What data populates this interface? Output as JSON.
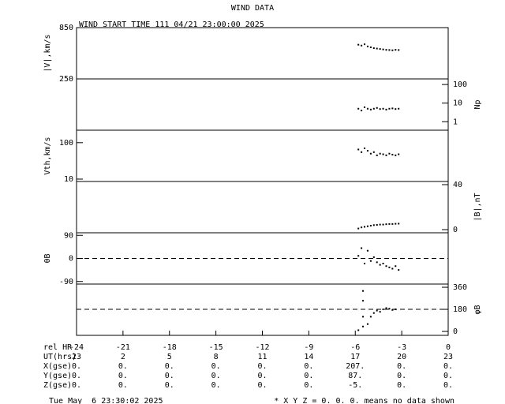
{
  "title": "WIND DATA",
  "subtitle": "WIND START TIME 111 04/21 23:00:00 2025",
  "chart_data": [
    {
      "type": "scatter",
      "ylabel": "|V|,km/s",
      "yaxis_side": "left",
      "log_y": false,
      "color": "#000000",
      "xlim": [
        -24,
        0
      ],
      "ylim": [
        250,
        850
      ],
      "yticks": [
        250,
        850
      ],
      "x": [
        -5.8,
        -5.6,
        -5.4,
        -5.2,
        -5.0,
        -4.8,
        -4.6,
        -4.4,
        -4.2,
        -4.0,
        -3.8,
        -3.6,
        -3.4,
        -3.2
      ],
      "values": [
        650,
        640,
        655,
        630,
        620,
        610,
        605,
        600,
        595,
        590,
        588,
        585,
        590,
        588
      ]
    },
    {
      "type": "scatter",
      "ylabel": "Np",
      "yaxis_side": "right",
      "log_y": true,
      "color": "#000000",
      "xlim": [
        -24,
        0
      ],
      "ylim": [
        0.35,
        200
      ],
      "yticks": [
        1,
        10,
        100
      ],
      "x": [
        -5.8,
        -5.6,
        -5.4,
        -5.2,
        -5.0,
        -4.8,
        -4.6,
        -4.4,
        -4.2,
        -4.0,
        -3.8,
        -3.6,
        -3.4,
        -3.2
      ],
      "values": [
        5,
        4,
        6,
        5,
        4.5,
        5,
        5.5,
        4.8,
        5,
        4.5,
        5,
        5.2,
        4.8,
        5
      ]
    },
    {
      "type": "scatter",
      "ylabel": "Vth,km/s",
      "yaxis_side": "left",
      "log_y": true,
      "color": "#000000",
      "xlim": [
        -24,
        0
      ],
      "ylim": [
        8.6,
        220
      ],
      "yticks": [
        10,
        100
      ],
      "x": [
        -5.8,
        -5.6,
        -5.4,
        -5.2,
        -5.0,
        -4.8,
        -4.6,
        -4.4,
        -4.2,
        -4.0,
        -3.8,
        -3.6,
        -3.4,
        -3.2
      ],
      "values": [
        65,
        55,
        70,
        60,
        50,
        55,
        45,
        50,
        48,
        45,
        50,
        47,
        45,
        48
      ]
    },
    {
      "type": "scatter",
      "ylabel": "|B|,nT",
      "yaxis_side": "right",
      "log_y": false,
      "color": "#000000",
      "xlim": [
        -24,
        0
      ],
      "ylim": [
        -2.8,
        42.8
      ],
      "yticks": [
        0,
        40
      ],
      "x": [
        -5.8,
        -5.6,
        -5.4,
        -5.2,
        -5.0,
        -4.8,
        -4.6,
        -4.4,
        -4.2,
        -4.0,
        -3.8,
        -3.6,
        -3.4,
        -3.2
      ],
      "values": [
        1,
        2,
        2.5,
        3,
        3.5,
        4,
        4.2,
        4.5,
        4.5,
        4.8,
        5,
        5,
        5.2,
        5.3
      ]
    },
    {
      "type": "scatter",
      "ylabel": "θB",
      "yaxis_side": "left",
      "log_y": false,
      "color": "#000000",
      "ref_line": 0,
      "xlim": [
        -24,
        0
      ],
      "ylim": [
        -100,
        100
      ],
      "yticks": [
        -90,
        0,
        90
      ],
      "x": [
        -5.8,
        -5.6,
        -5.4,
        -5.2,
        -5.0,
        -4.8,
        -4.6,
        -4.4,
        -4.2,
        -4.0,
        -3.8,
        -3.6,
        -3.4,
        -3.2
      ],
      "values": [
        10,
        40,
        -20,
        30,
        -10,
        5,
        -15,
        -25,
        -20,
        -30,
        -35,
        -40,
        -30,
        -45
      ]
    },
    {
      "type": "scatter",
      "ylabel": "φB",
      "yaxis_side": "right",
      "log_y": false,
      "color": "#000000",
      "ref_line": 180,
      "xlim": [
        -24,
        0
      ],
      "ylim": [
        -32,
        386
      ],
      "yticks": [
        0,
        180,
        360
      ],
      "xlabel": "rel HR",
      "xticks": [
        -24,
        -21,
        -18,
        -15,
        -12,
        -9,
        -6,
        -3,
        0
      ],
      "x": [
        -5.8,
        -5.5,
        -5.5,
        -5.5,
        -5.5,
        -5.2,
        -5.0,
        -4.8,
        -4.6,
        -4.4,
        -4.2,
        -4.0,
        -3.8,
        -3.6,
        -3.4
      ],
      "values": [
        10,
        40,
        120,
        250,
        330,
        60,
        120,
        150,
        170,
        160,
        180,
        190,
        185,
        175,
        180
      ]
    }
  ],
  "table": {
    "rows": [
      {
        "label": "UT(hrs)",
        "cells": [
          "23",
          "2",
          "5",
          "8",
          "11",
          "14",
          "17",
          "20",
          "23"
        ]
      },
      {
        "label": "X(gse)",
        "cells": [
          "0.",
          "0.",
          "0.",
          "0.",
          "0.",
          "0.",
          "207.",
          "0.",
          "0."
        ]
      },
      {
        "label": "Y(gse)",
        "cells": [
          "0.",
          "0.",
          "0.",
          "0.",
          "0.",
          "0.",
          "87.",
          "0.",
          "0."
        ]
      },
      {
        "label": "Z(gse)",
        "cells": [
          "0.",
          "0.",
          "0.",
          "0.",
          "0.",
          "0.",
          "-5.",
          "0.",
          "0."
        ]
      }
    ]
  },
  "footer": {
    "date": "Tue May  6 23:30:02 2025",
    "note": "* X Y Z = 0. 0. 0. means no data shown"
  }
}
